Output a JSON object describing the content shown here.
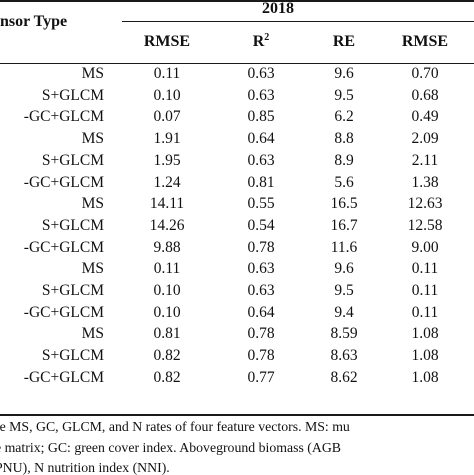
{
  "table": {
    "header": {
      "sensor_type": "nsor Type",
      "year": "2018",
      "columns": [
        {
          "label": "RMSE",
          "sup": ""
        },
        {
          "label": "R",
          "sup": "2"
        },
        {
          "label": "RE",
          "sup": ""
        },
        {
          "label": "RMSE",
          "sup": ""
        }
      ]
    },
    "rows": [
      {
        "sensor": "MS",
        "values": [
          "0.11",
          "0.63",
          "9.6",
          "0.70"
        ]
      },
      {
        "sensor": "S+GLCM",
        "values": [
          "0.10",
          "0.63",
          "9.5",
          "0.68"
        ]
      },
      {
        "sensor": "-GC+GLCM",
        "values": [
          "0.07",
          "0.85",
          "6.2",
          "0.49"
        ]
      },
      {
        "sensor": "MS",
        "values": [
          "1.91",
          "0.64",
          "8.8",
          "2.09"
        ]
      },
      {
        "sensor": "S+GLCM",
        "values": [
          "1.95",
          "0.63",
          "8.9",
          "2.11"
        ]
      },
      {
        "sensor": "-GC+GLCM",
        "values": [
          "1.24",
          "0.81",
          "5.6",
          "1.38"
        ]
      },
      {
        "sensor": "MS",
        "values": [
          "14.11",
          "0.55",
          "16.5",
          "12.63"
        ]
      },
      {
        "sensor": "S+GLCM",
        "values": [
          "14.26",
          "0.54",
          "16.7",
          "12.58"
        ]
      },
      {
        "sensor": "-GC+GLCM",
        "values": [
          "9.88",
          "0.78",
          "11.6",
          "9.00"
        ]
      },
      {
        "sensor": "MS",
        "values": [
          "0.11",
          "0.63",
          "9.6",
          "0.11"
        ]
      },
      {
        "sensor": "S+GLCM",
        "values": [
          "0.10",
          "0.63",
          "9.5",
          "0.11"
        ]
      },
      {
        "sensor": "-GC+GLCM",
        "values": [
          "0.10",
          "0.64",
          "9.4",
          "0.11"
        ]
      },
      {
        "sensor": "MS",
        "values": [
          "0.81",
          "0.78",
          "8.59",
          "1.08"
        ]
      },
      {
        "sensor": "S+GLCM",
        "values": [
          "0.82",
          "0.78",
          "8.63",
          "1.08"
        ]
      },
      {
        "sensor": "-GC+GLCM",
        "values": [
          "0.82",
          "0.77",
          "8.62",
          "1.08"
        ]
      }
    ]
  },
  "caption": {
    "lines": [
      "re MS, GC, GLCM, and N rates of four feature vectors. MS: mu",
      "e matrix; GC: green cover index. Aboveground biomass (AGB",
      "PNU), N nutrition index (NNI)."
    ]
  }
}
